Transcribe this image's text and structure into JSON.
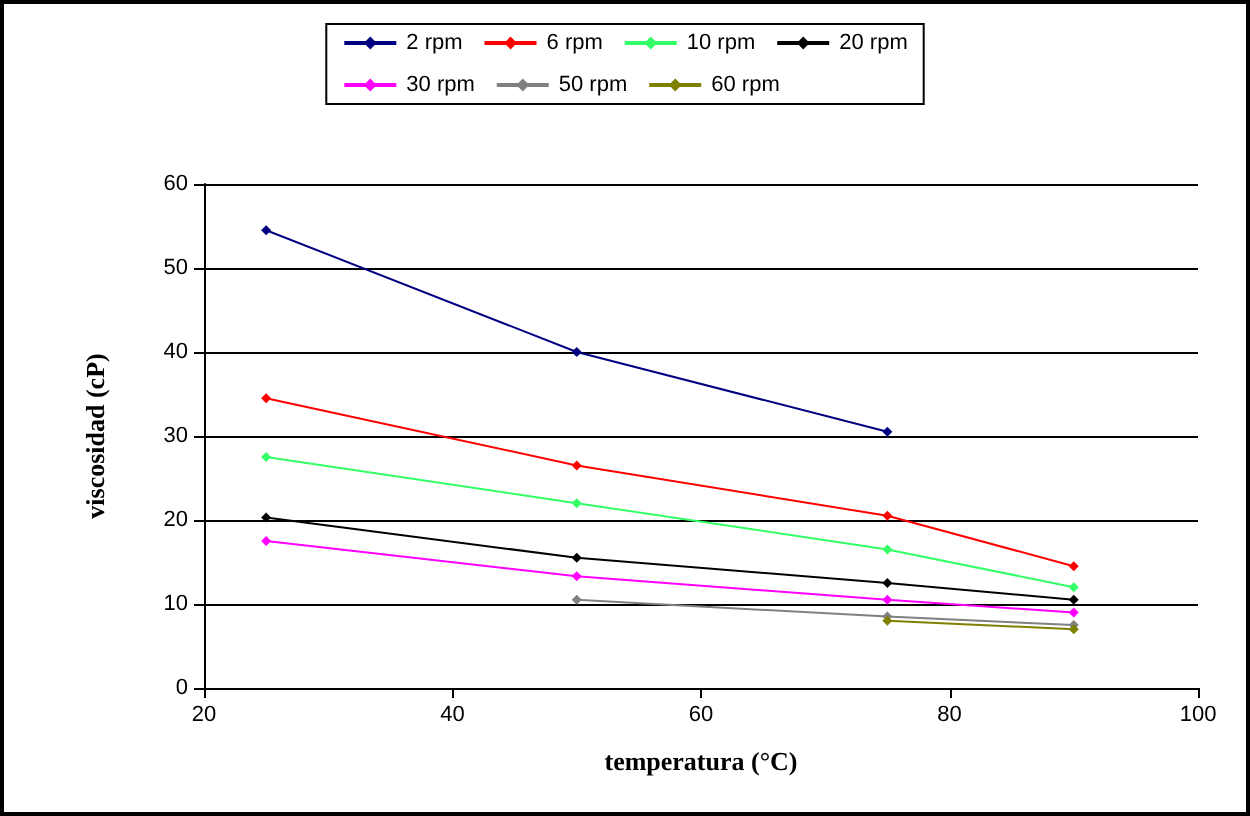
{
  "chart_data": {
    "type": "line",
    "xlabel": "temperatura (°C)",
    "ylabel": "viscosidad (cP)",
    "xlim": [
      20,
      100
    ],
    "xticks": [
      20,
      40,
      60,
      80,
      100
    ],
    "ylim": [
      0,
      60
    ],
    "yticks": [
      0,
      10,
      20,
      30,
      40,
      50,
      60
    ],
    "grid": "y",
    "legend": "top",
    "marker": "diamond",
    "line_style": "solid",
    "x": [
      25,
      50,
      75,
      90
    ],
    "series": [
      {
        "name": "2 rpm",
        "color": "#000080",
        "values": [
          54.5,
          40,
          30.5,
          null
        ]
      },
      {
        "name": "6 rpm",
        "color": "#ff0000",
        "values": [
          34.5,
          26.5,
          20.5,
          14.5
        ]
      },
      {
        "name": "10 rpm",
        "color": "#33ff66",
        "values": [
          27.5,
          22,
          16.5,
          12
        ]
      },
      {
        "name": "20 rpm",
        "color": "#000000",
        "values": [
          20.3,
          15.5,
          12.5,
          10.5
        ]
      },
      {
        "name": "30 rpm",
        "color": "#ff00ff",
        "values": [
          17.5,
          13.3,
          10.5,
          9
        ]
      },
      {
        "name": "50 rpm",
        "color": "#808080",
        "values": [
          null,
          10.5,
          8.5,
          7.5
        ]
      },
      {
        "name": "60 rpm",
        "color": "#808000",
        "values": [
          null,
          null,
          8,
          7
        ]
      }
    ]
  }
}
